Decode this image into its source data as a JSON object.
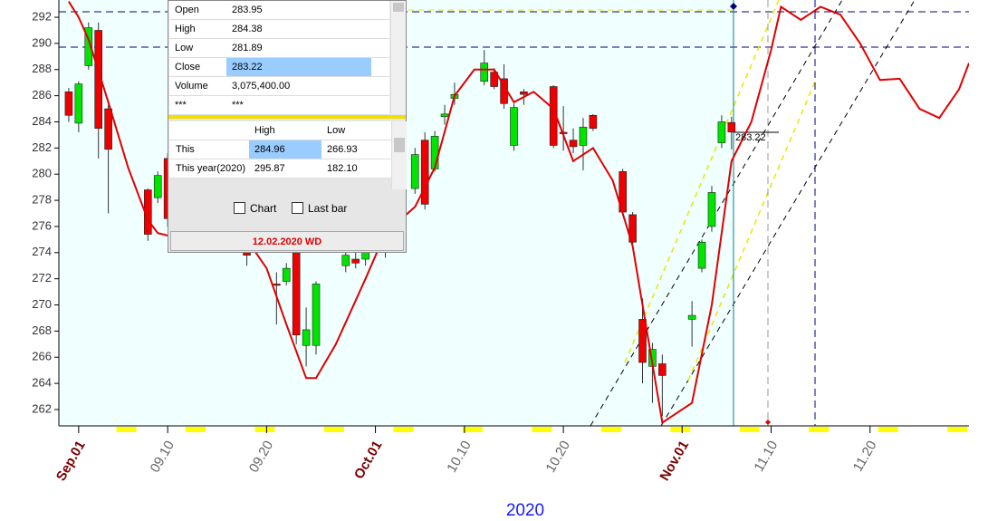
{
  "chart_data": {
    "type": "candlestick",
    "x": [
      "2020-08-31",
      "2020-09-01",
      "2020-09-02",
      "2020-09-03",
      "2020-09-04",
      "2020-09-08",
      "2020-09-09",
      "2020-09-10",
      "2020-09-11",
      "2020-09-14",
      "2020-09-15",
      "2020-09-16",
      "2020-09-17",
      "2020-09-18",
      "2020-09-21",
      "2020-09-22",
      "2020-09-23",
      "2020-09-24",
      "2020-09-25",
      "2020-09-28",
      "2020-09-29",
      "2020-09-30",
      "2020-10-01",
      "2020-10-02",
      "2020-10-05",
      "2020-10-06",
      "2020-10-07",
      "2020-10-08",
      "2020-10-09",
      "2020-10-12",
      "2020-10-13",
      "2020-10-14",
      "2020-10-15",
      "2020-10-16",
      "2020-10-19",
      "2020-10-20",
      "2020-10-21",
      "2020-10-22",
      "2020-10-23",
      "2020-10-26",
      "2020-10-27",
      "2020-10-28",
      "2020-10-29",
      "2020-10-30",
      "2020-11-02",
      "2020-11-03",
      "2020-11-04",
      "2020-11-05",
      "2020-11-06"
    ],
    "open": [
      286.3,
      283.9,
      288.3,
      291.0,
      285.0,
      278.8,
      278.2,
      281.2,
      276.8,
      277.5,
      278.3,
      278.9,
      276.2,
      276.5,
      271.6,
      271.8,
      274.1,
      266.9,
      266.9,
      273.0,
      273.5,
      273.5,
      276.5,
      274.5,
      278.9,
      282.6,
      280.4,
      284.4,
      285.8,
      287.1,
      287.8,
      287.3,
      282.2,
      286.3,
      286.7,
      283.2,
      282.6,
      282.2,
      284.5,
      280.2,
      276.9,
      268.9,
      265.3,
      265.5,
      268.9,
      272.8,
      276.0,
      282.4,
      283.95
    ],
    "high": [
      286.6,
      287.1,
      291.6,
      291.6,
      285.3,
      278.9,
      280.2,
      281.6,
      277.5,
      278.4,
      279.0,
      279.3,
      277.0,
      276.8,
      272.5,
      273.2,
      275.7,
      269.8,
      271.8,
      274.0,
      274.0,
      275.5,
      276.8,
      275.9,
      282.0,
      283.2,
      283.3,
      285.3,
      287.0,
      289.5,
      288.1,
      288.4,
      285.4,
      286.5,
      286.8,
      285.2,
      283.5,
      284.3,
      284.6,
      280.4,
      277.1,
      270.5,
      267.1,
      266.2,
      270.3,
      275.0,
      279.1,
      284.5,
      284.38
    ],
    "low": [
      284.0,
      283.2,
      288.0,
      281.2,
      277.0,
      274.9,
      277.8,
      276.0,
      275.5,
      277.0,
      277.6,
      277.2,
      275.0,
      273.0,
      268.5,
      271.5,
      267.0,
      265.3,
      266.2,
      272.5,
      272.8,
      273.0,
      274.8,
      273.6,
      278.5,
      277.3,
      280.2,
      283.8,
      285.3,
      286.8,
      286.5,
      285.0,
      281.8,
      285.3,
      282.0,
      281.8,
      281.6,
      280.3,
      283.3,
      276.8,
      274.6,
      264.0,
      262.5,
      261.5,
      266.8,
      272.5,
      275.6,
      282.0,
      281.89
    ],
    "close": [
      284.5,
      286.9,
      291.2,
      283.5,
      281.9,
      275.4,
      279.9,
      276.6,
      276.5,
      278.0,
      278.6,
      277.5,
      276.7,
      273.8,
      271.5,
      272.8,
      267.7,
      268.1,
      271.6,
      273.8,
      273.2,
      274.8,
      275.7,
      275.0,
      281.5,
      277.7,
      282.9,
      284.6,
      286.1,
      288.5,
      286.7,
      285.4,
      285.1,
      286.1,
      282.2,
      283.1,
      282.1,
      283.6,
      283.5,
      277.1,
      274.8,
      265.6,
      266.6,
      264.6,
      269.2,
      274.8,
      278.6,
      284.0,
      283.22
    ],
    "up_color": "#00e400",
    "down_color": "#ee0000",
    "line": {
      "color": "#e00000",
      "x": [
        "2020-08-31",
        "2020-09-01",
        "2020-09-02",
        "2020-09-04",
        "2020-09-06",
        "2020-09-08",
        "2020-09-09",
        "2020-09-10",
        "2020-09-12",
        "2020-09-15",
        "2020-09-18",
        "2020-09-20",
        "2020-09-22",
        "2020-09-24",
        "2020-09-25",
        "2020-09-27",
        "2020-09-30",
        "2020-10-02",
        "2020-10-05",
        "2020-10-07",
        "2020-10-09",
        "2020-10-11",
        "2020-10-13",
        "2020-10-15",
        "2020-10-17",
        "2020-10-19",
        "2020-10-21",
        "2020-10-23",
        "2020-10-25",
        "2020-10-27",
        "2020-10-29",
        "2020-10-30",
        "2020-10-31",
        "2020-11-02",
        "2020-11-04",
        "2020-11-06",
        "2020-11-08",
        "2020-11-10",
        "2020-11-11",
        "2020-11-13",
        "2020-11-15",
        "2020-11-17",
        "2020-11-19",
        "2020-11-21",
        "2020-11-23",
        "2020-11-25",
        "2020-11-27",
        "2020-11-29",
        "2020-11-30"
      ],
      "values": [
        293.2,
        292.0,
        290.3,
        285.5,
        280.5,
        276.5,
        275.5,
        275.3,
        276.0,
        276.5,
        275.0,
        272.8,
        268.5,
        264.4,
        264.4,
        267.0,
        272.0,
        275.5,
        277.5,
        280.5,
        286.0,
        288.0,
        288.0,
        285.5,
        286.3,
        285.0,
        281.0,
        282.0,
        279.5,
        274.5,
        265.5,
        261.0,
        261.5,
        262.5,
        270.0,
        281.0,
        284.0,
        289.5,
        292.8,
        291.8,
        292.8,
        292.2,
        290.0,
        287.2,
        287.3,
        285.0,
        284.3,
        286.5,
        288.5
      ]
    },
    "xlim": [
      "2020-08-30",
      "2020-11-30"
    ],
    "xticks": [
      {
        "value": "2020-09-01",
        "label": "Sep.01"
      },
      {
        "value": "2020-09-10",
        "label": "09.10"
      },
      {
        "value": "2020-09-20",
        "label": "09.20"
      },
      {
        "value": "2020-10-01",
        "label": "Oct.01"
      },
      {
        "value": "2020-10-10",
        "label": "10.10"
      },
      {
        "value": "2020-10-20",
        "label": "10.20"
      },
      {
        "value": "2020-11-01",
        "label": "Nov.01"
      },
      {
        "value": "2020-11-10",
        "label": "11.10"
      },
      {
        "value": "2020-11-20",
        "label": "11.20"
      }
    ],
    "x_label": "2020",
    "ylim": [
      260.75,
      293.32
    ],
    "yticks": [
      262,
      264,
      266,
      268,
      270,
      272,
      274,
      276,
      278,
      280,
      282,
      284,
      286,
      288,
      290,
      292
    ],
    "month_label_color": "#7a0000",
    "day_label_color": "#666666"
  },
  "info_panel": {
    "quote": [
      {
        "label": "Open",
        "value": "283.95"
      },
      {
        "label": "High",
        "value": "284.38"
      },
      {
        "label": "Low",
        "value": "281.89"
      },
      {
        "label": "Close",
        "value": "283.22"
      },
      {
        "label": "Volume",
        "value": "3,075,400.00"
      },
      {
        "label": "***",
        "value": "***"
      }
    ],
    "range_table": {
      "columns": [
        "High",
        "Low"
      ],
      "rows": [
        [
          "This month(Nov)",
          "284.96",
          "266.93"
        ],
        [
          "This year(2020)",
          "295.87",
          "182.10"
        ]
      ]
    },
    "checkboxes": [
      "Chart",
      "Last bar"
    ],
    "status": "12.02.2020 WD"
  }
}
